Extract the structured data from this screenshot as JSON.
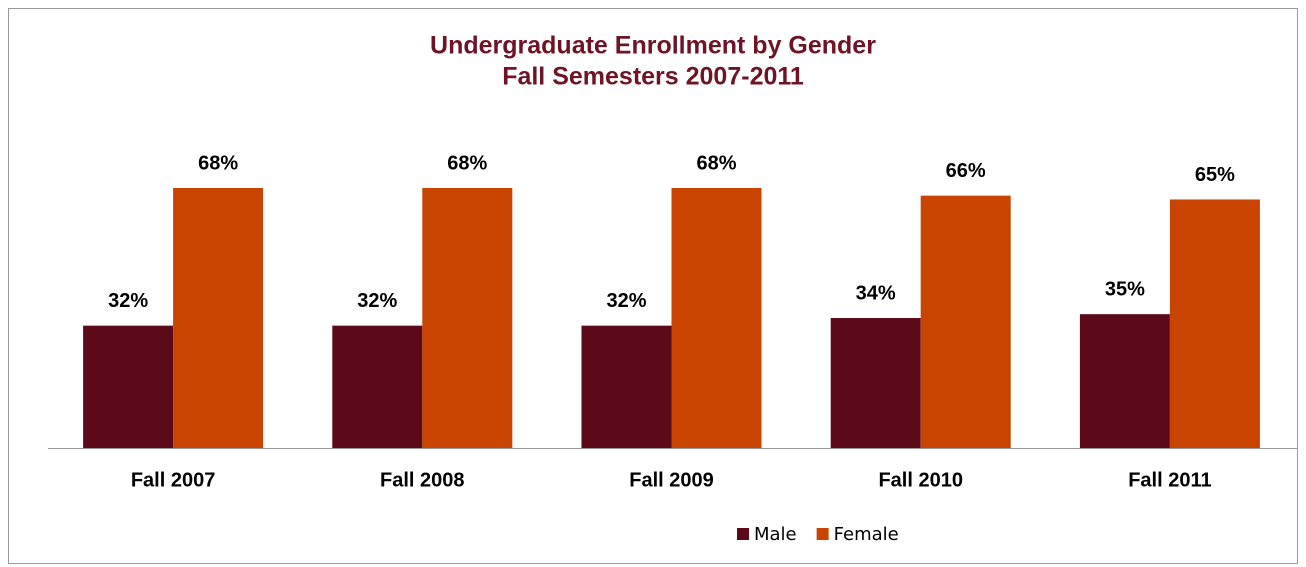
{
  "chart_data": {
    "type": "bar",
    "title": [
      "Undergraduate Enrollment by Gender",
      "Fall Semesters 2007-2011"
    ],
    "categories": [
      "Fall 2007",
      "Fall 2008",
      "Fall 2009",
      "Fall 2010",
      "Fall 2011"
    ],
    "series": [
      {
        "name": "Male",
        "color": "#5c0a1a",
        "values": [
          32,
          32,
          32,
          34,
          35
        ],
        "value_labels": [
          "32%",
          "32%",
          "32%",
          "34%",
          "35%"
        ]
      },
      {
        "name": "Female",
        "color": "#c84400",
        "values": [
          68,
          68,
          68,
          66,
          65
        ],
        "value_labels": [
          "68%",
          "68%",
          "68%",
          "66%",
          "65%"
        ]
      }
    ],
    "legend": "bottom"
  }
}
